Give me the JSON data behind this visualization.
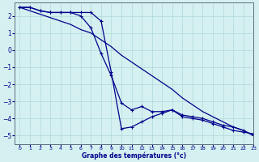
{
  "xlabel": "Graphe des températures (°c)",
  "background_color": "#d4f0f0",
  "grid_color": "#afd8d8",
  "line_color": "#00008b",
  "xlim": [
    -0.5,
    23
  ],
  "ylim": [
    -5.5,
    2.8
  ],
  "xticks": [
    0,
    1,
    2,
    3,
    4,
    5,
    6,
    7,
    8,
    9,
    10,
    11,
    12,
    13,
    14,
    15,
    16,
    17,
    18,
    19,
    20,
    21,
    22,
    23
  ],
  "yticks": [
    -5,
    -4,
    -3,
    -2,
    -1,
    0,
    1,
    2
  ],
  "hours": [
    0,
    1,
    2,
    3,
    4,
    5,
    6,
    7,
    8,
    9,
    10,
    11,
    12,
    13,
    14,
    15,
    16,
    17,
    18,
    19,
    20,
    21,
    22,
    23
  ],
  "temp_straight": [
    2.5,
    2.3,
    2.1,
    1.9,
    1.7,
    1.5,
    1.2,
    1.0,
    0.6,
    0.2,
    -0.3,
    -0.7,
    -1.1,
    -1.5,
    -1.9,
    -2.3,
    -2.8,
    -3.2,
    -3.6,
    -3.9,
    -4.2,
    -4.5,
    -4.7,
    -5.0
  ],
  "temp_curve1": [
    2.5,
    2.5,
    2.3,
    2.2,
    2.2,
    2.2,
    2.2,
    2.2,
    1.7,
    -1.3,
    -4.6,
    -4.5,
    -4.2,
    -3.9,
    -3.7,
    -3.5,
    -3.9,
    -4.0,
    -4.1,
    -4.3,
    -4.5,
    -4.7,
    -4.8,
    -4.9
  ],
  "temp_curve2": [
    2.5,
    2.5,
    2.3,
    2.2,
    2.2,
    2.2,
    2.0,
    1.3,
    -0.2,
    -1.5,
    -3.1,
    -3.5,
    -3.3,
    -3.6,
    -3.6,
    -3.5,
    -3.8,
    -3.9,
    -4.0,
    -4.2,
    -4.4,
    -4.5,
    -4.7,
    -5.0
  ]
}
